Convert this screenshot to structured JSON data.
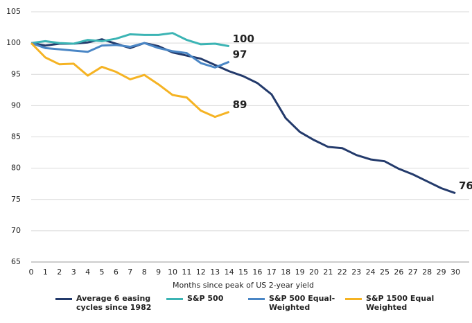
{
  "chart_data": {
    "type": "line",
    "x_label": "Months since peak of US 2-year yield",
    "x": [
      0,
      1,
      2,
      3,
      4,
      5,
      6,
      7,
      8,
      9,
      10,
      11,
      12,
      13,
      14,
      15,
      16,
      17,
      18,
      19,
      20,
      21,
      22,
      23,
      24,
      25,
      26,
      27,
      28,
      29,
      30
    ],
    "xlim": [
      0,
      30
    ],
    "xticks": [
      0,
      1,
      2,
      3,
      4,
      5,
      6,
      7,
      8,
      9,
      10,
      11,
      12,
      13,
      14,
      15,
      16,
      17,
      18,
      19,
      20,
      21,
      22,
      23,
      24,
      25,
      26,
      27,
      28,
      29,
      30
    ],
    "ylim": [
      65,
      105
    ],
    "yticks": [
      65,
      70,
      75,
      80,
      85,
      90,
      95,
      100,
      105
    ],
    "grid": true,
    "legend": "bottom",
    "series": [
      {
        "name": "Average 6 easing cycles since 1982",
        "color": "#233a6b",
        "end_label": "76",
        "values": [
          100,
          99.6,
          99.9,
          99.9,
          100.1,
          100.6,
          99.9,
          99.2,
          100,
          99.5,
          98.5,
          98,
          97.5,
          96.5,
          95.5,
          94.7,
          93.6,
          91.8,
          88,
          85.8,
          84.5,
          83.4,
          83.2,
          82.1,
          81.4,
          81.1,
          79.9,
          79,
          77.9,
          76.8,
          76
        ]
      },
      {
        "name": "S&P 500",
        "color": "#3bb4b4",
        "end_label": "100",
        "values": [
          100,
          100.3,
          100,
          99.9,
          100.5,
          100.3,
          100.7,
          101.4,
          101.3,
          101.3,
          101.6,
          100.5,
          99.8,
          99.9,
          99.5,
          null,
          null,
          null,
          null,
          null,
          null,
          null,
          null,
          null,
          null,
          null,
          null,
          null,
          null,
          null,
          null
        ]
      },
      {
        "name": "S&P 500 Equal-Weighted",
        "color": "#4a86c5",
        "end_label": "97",
        "values": [
          100,
          99.2,
          99,
          98.8,
          98.6,
          99.6,
          99.7,
          99.4,
          100,
          99.2,
          98.7,
          98.4,
          96.8,
          96.1,
          97,
          null,
          null,
          null,
          null,
          null,
          null,
          null,
          null,
          null,
          null,
          null,
          null,
          null,
          null,
          null,
          null
        ]
      },
      {
        "name": "S&P 1500 Equal Weighted",
        "color": "#f5b323",
        "end_label": "89",
        "values": [
          100,
          97.7,
          96.6,
          96.7,
          94.8,
          96.2,
          95.4,
          94.2,
          94.9,
          93.4,
          91.7,
          91.3,
          89.2,
          88.2,
          89,
          null,
          null,
          null,
          null,
          null,
          null,
          null,
          null,
          null,
          null,
          null,
          null,
          null,
          null,
          null,
          null
        ]
      }
    ]
  }
}
